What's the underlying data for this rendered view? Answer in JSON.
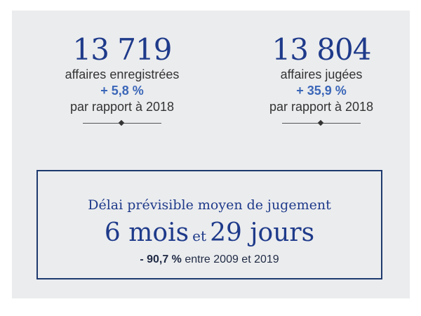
{
  "stats": [
    {
      "number": "13 719",
      "label": "affaires enregistrées",
      "change": "+ 5,8 %",
      "comparison": "par rapport à 2018"
    },
    {
      "number": "13 804",
      "label": "affaires jugées",
      "change": "+ 35,9 %",
      "comparison": "par rapport à 2018"
    }
  ],
  "delay_box": {
    "title": "Délai prévisible moyen de jugement",
    "months_value": "6 mois",
    "connector": "et",
    "days_value": "29 jours",
    "change_value": "- 90,7 %",
    "change_text": " entre 2009 et 2019"
  },
  "colors": {
    "accent": "#1e3a8a",
    "change": "#3a66b8",
    "panel_background": "#ebecee"
  }
}
